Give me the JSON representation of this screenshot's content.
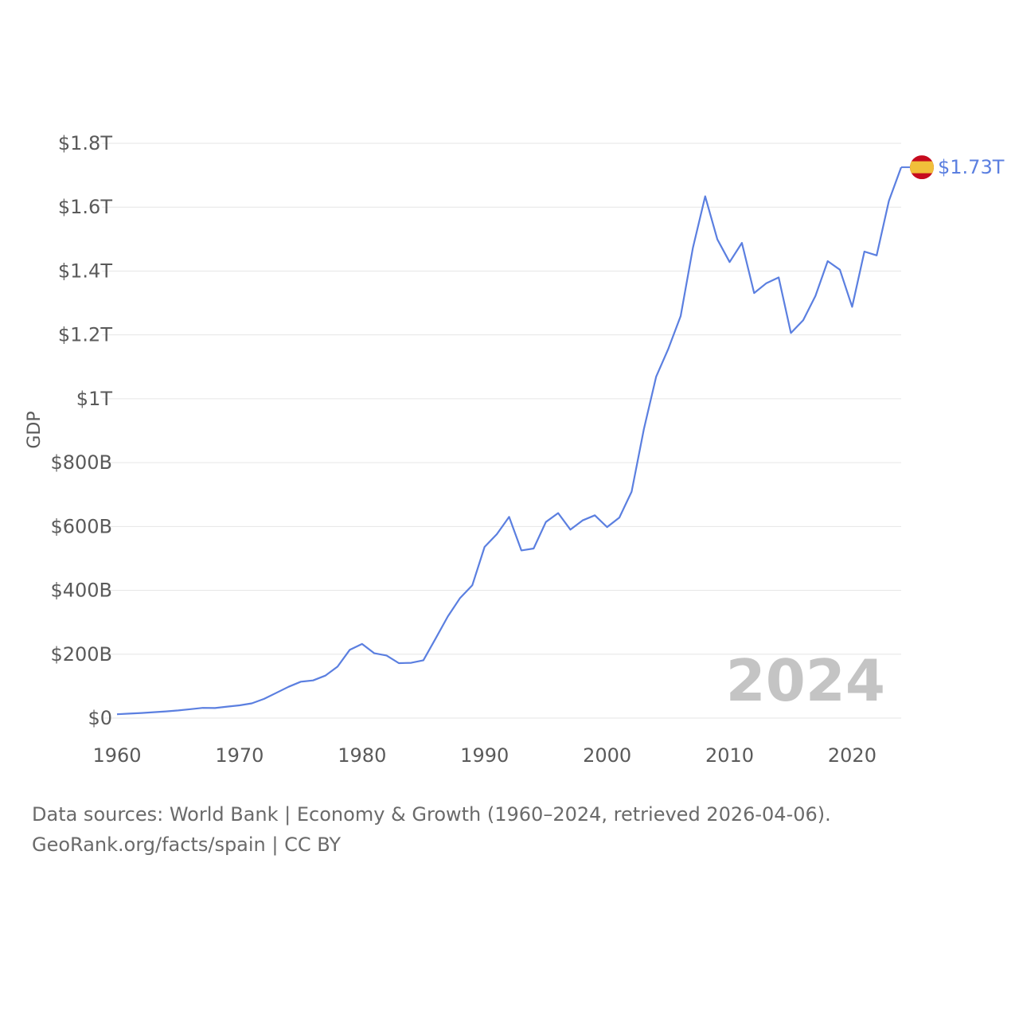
{
  "colors": {
    "series": "#5b7fe0",
    "flag_red": "#c60b1e",
    "flag_yellow": "#f1bf3a"
  },
  "chart_data": {
    "type": "line",
    "title": "",
    "xlabel": "",
    "ylabel": "GDP",
    "xlim": [
      1960,
      2024
    ],
    "ylim": [
      0,
      1800000000000
    ],
    "x_ticks": [
      1960,
      1970,
      1980,
      1990,
      2000,
      2010,
      2020
    ],
    "y_ticks": [
      0,
      200000000000,
      400000000000,
      600000000000,
      800000000000,
      1000000000000,
      1200000000000,
      1400000000000,
      1600000000000,
      1800000000000
    ],
    "y_tick_labels": [
      "$0",
      "$200B",
      "$400B",
      "$600B",
      "$800B",
      "$1T",
      "$1.2T",
      "$1.4T",
      "$1.6T",
      "$1.8T"
    ],
    "grid": true,
    "series": [
      {
        "name": "Spain",
        "icon": "spain-flag-icon",
        "end_label": "$1.73T",
        "x": [
          1960,
          1961,
          1962,
          1963,
          1964,
          1965,
          1966,
          1967,
          1968,
          1969,
          1970,
          1971,
          1972,
          1973,
          1974,
          1975,
          1976,
          1977,
          1978,
          1979,
          1980,
          1981,
          1982,
          1983,
          1984,
          1985,
          1986,
          1987,
          1988,
          1989,
          1990,
          1991,
          1992,
          1993,
          1994,
          1995,
          1996,
          1997,
          1998,
          1999,
          2000,
          2001,
          2002,
          2003,
          2004,
          2005,
          2006,
          2007,
          2008,
          2009,
          2010,
          2011,
          2012,
          2013,
          2014,
          2015,
          2016,
          2017,
          2018,
          2019,
          2020,
          2021,
          2022,
          2023,
          2024
        ],
        "values": [
          12000000000,
          14000000000,
          16000000000,
          18500000000,
          21000000000,
          24000000000,
          28000000000,
          32000000000,
          31500000000,
          36000000000,
          40000000000,
          46000000000,
          60000000000,
          79000000000,
          98000000000,
          114000000000,
          118000000000,
          133000000000,
          161000000000,
          214000000000,
          232000000000,
          203000000000,
          196000000000,
          172000000000,
          173000000000,
          181000000000,
          249000000000,
          318000000000,
          376000000000,
          416000000000,
          536000000000,
          576000000000,
          630000000000,
          525000000000,
          531000000000,
          614000000000,
          642000000000,
          590000000000,
          619000000000,
          635000000000,
          598000000000,
          628000000000,
          709000000000,
          905000000000,
          1069000000000,
          1157000000000,
          1259000000000,
          1473000000000,
          1634000000000,
          1499000000000,
          1428000000000,
          1488000000000,
          1331000000000,
          1362000000000,
          1380000000000,
          1206000000000,
          1246000000000,
          1322000000000,
          1431000000000,
          1404000000000,
          1288000000000,
          1461000000000,
          1449000000000,
          1620000000000,
          1725000000000
        ]
      }
    ]
  },
  "current_year": "2024",
  "footer": {
    "line1": "Data sources: World Bank | Economy & Growth (1960–2024, retrieved 2026-04-06).",
    "line2": "GeoRank.org/facts/spain | CC BY"
  }
}
